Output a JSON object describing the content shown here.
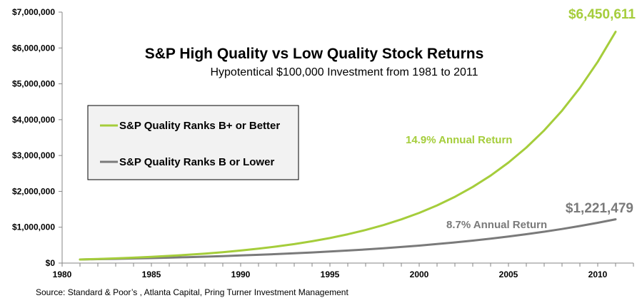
{
  "chart_data": {
    "type": "line",
    "title": "S&P High Quality vs Low Quality Stock Returns",
    "subtitle": "Hypotentical $100,000 Investment from 1981 to 2011",
    "xlabel": "",
    "ylabel": "",
    "xlim": [
      1980,
      2012
    ],
    "ylim": [
      0,
      7000000
    ],
    "x_ticks": [
      1980,
      1985,
      1990,
      1995,
      2000,
      2005,
      2010
    ],
    "x_tick_labels": [
      "1980",
      "1985",
      "1990",
      "1995",
      "2000",
      "2005",
      "2010"
    ],
    "y_ticks": [
      0,
      1000000,
      2000000,
      3000000,
      4000000,
      5000000,
      6000000,
      7000000
    ],
    "y_tick_labels": [
      "$0",
      "$1,000,000",
      "$2,000,000",
      "$3,000,000",
      "$4,000,000",
      "$5,000,000",
      "$6,000,000",
      "$7,000,000"
    ],
    "grid": false,
    "legend_position": "left",
    "x": [
      1981,
      1982,
      1983,
      1984,
      1985,
      1986,
      1987,
      1988,
      1989,
      1990,
      1991,
      1992,
      1993,
      1994,
      1995,
      1996,
      1997,
      1998,
      1999,
      2000,
      2001,
      2002,
      2003,
      2004,
      2005,
      2006,
      2007,
      2008,
      2009,
      2010,
      2011
    ],
    "series": [
      {
        "name": "S&P Quality Ranks B+ or Better",
        "color": "#a5cd3b",
        "values": [
          100000,
          114900,
          132020,
          151690,
          174290,
          200260,
          230100,
          264390,
          303780,
          349040,
          401050,
          460810,
          529470,
          608360,
          699000,
          803150,
          922820,
          1060320,
          1218300,
          1399830,
          1608400,
          1848050,
          2123410,
          2439790,
          2803320,
          3221010,
          3700940,
          4252380,
          4885980,
          5613990,
          6450611
        ],
        "annual_return_label": "14.9% Annual Return",
        "end_value_label": "$6,450,611"
      },
      {
        "name": "S&P Quality Ranks B or Lower",
        "color": "#7a7a7a",
        "values": [
          100000,
          108700,
          118160,
          128440,
          139610,
          151760,
          164960,
          179310,
          194910,
          211870,
          230300,
          250340,
          272120,
          295790,
          321530,
          349500,
          379910,
          412960,
          448890,
          487940,
          530390,
          576540,
          626700,
          681220,
          740490,
          804910,
          874940,
          951060,
          1033800,
          1123740,
          1221479
        ],
        "annual_return_label": "8.7% Annual Return",
        "end_value_label": "$1,221,479"
      }
    ],
    "source": "Source: Standard & Poor’s , Atlanta Capital, Pring Turner Investment Management"
  }
}
